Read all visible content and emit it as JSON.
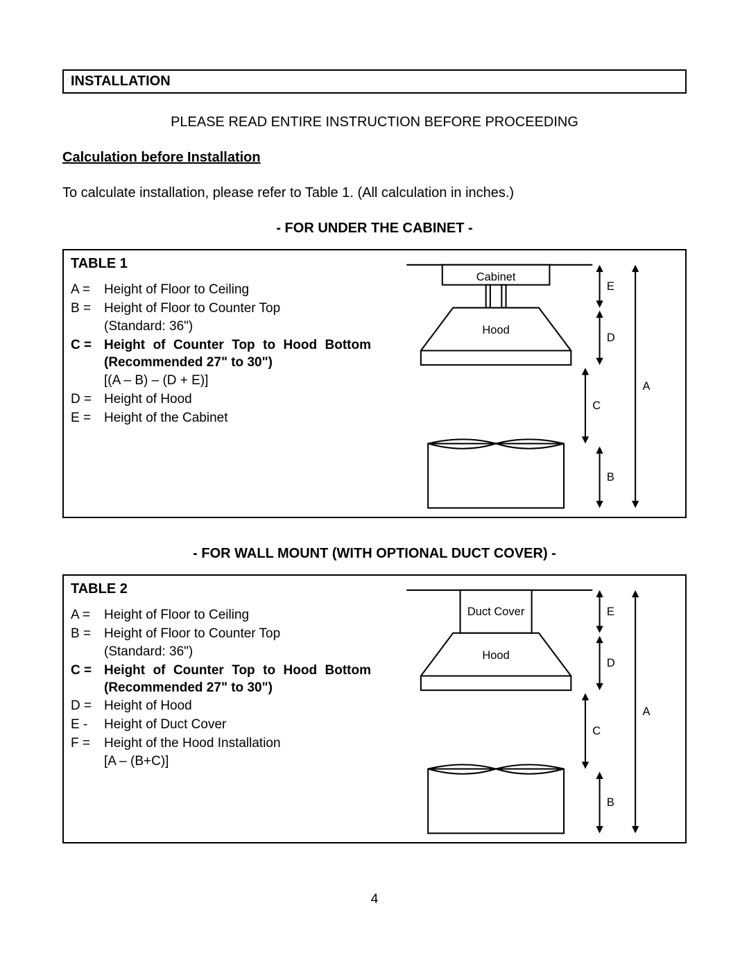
{
  "section_title": "INSTALLATION",
  "read_first": "PLEASE READ ENTIRE INSTRUCTION BEFORE PROCEEDING",
  "calc_heading": "Calculation before Installation",
  "calc_text": "To calculate installation, please refer to Table 1. (All calculation in inches.)",
  "sub1": "- FOR UNDER THE CABINET -",
  "sub2": "- FOR WALL MOUNT (WITH OPTIONAL DUCT COVER) -",
  "table1": {
    "title": "TABLE 1",
    "rows": [
      {
        "label": "A =",
        "desc": "Height of Floor to Ceiling",
        "bold": false
      },
      {
        "label": "B =",
        "desc": "Height of Floor to Counter Top",
        "bold": false
      },
      {
        "label": "",
        "desc": "(Standard: 36\")",
        "bold": false
      },
      {
        "label": "C =",
        "desc": "Height of Counter Top to Hood Bottom (Recommended 27\" to 30\")",
        "bold": true
      },
      {
        "label": "",
        "desc": "[(A – B) – (D + E)]",
        "bold": false
      },
      {
        "label": "D =",
        "desc": "Height of Hood",
        "bold": false
      },
      {
        "label": "E =",
        "desc": "Height of the Cabinet",
        "bold": false
      }
    ],
    "diagram": {
      "type": "diagram",
      "top_label": "Cabinet",
      "mid_label": "Hood",
      "dims": [
        "E",
        "D",
        "C",
        "B",
        "A"
      ],
      "stroke": "#000000",
      "fill": "#ffffff",
      "grey_fill": "#f0f0f0",
      "line_width": 2,
      "font_size": 16,
      "show_cabinet_posts": true
    }
  },
  "table2": {
    "title": "TABLE 2",
    "rows": [
      {
        "label": "A =",
        "desc": "Height of Floor to Ceiling",
        "bold": false
      },
      {
        "label": "B =",
        "desc": "Height of Floor to Counter Top",
        "bold": false
      },
      {
        "label": "",
        "desc": "(Standard: 36\")",
        "bold": false
      },
      {
        "label": "C =",
        "desc": "Height of Counter Top to Hood Bottom (Recommended 27\" to 30\")",
        "bold": true
      },
      {
        "label": "D =",
        "desc": "Height of Hood",
        "bold": false
      },
      {
        "label": "E -",
        "desc": "Height of Duct Cover",
        "bold": false
      },
      {
        "label": "F =",
        "desc": "Height of the Hood Installation",
        "bold": false
      },
      {
        "label": "",
        "desc": "[A – (B+C)]",
        "bold": false
      }
    ],
    "diagram": {
      "type": "diagram",
      "top_label": "Duct Cover",
      "mid_label": "Hood",
      "dims": [
        "E",
        "D",
        "C",
        "B",
        "A"
      ],
      "stroke": "#000000",
      "fill": "#ffffff",
      "grey_fill": "#f0f0f0",
      "line_width": 2,
      "font_size": 16,
      "show_cabinet_posts": false
    }
  },
  "page_number": "4"
}
